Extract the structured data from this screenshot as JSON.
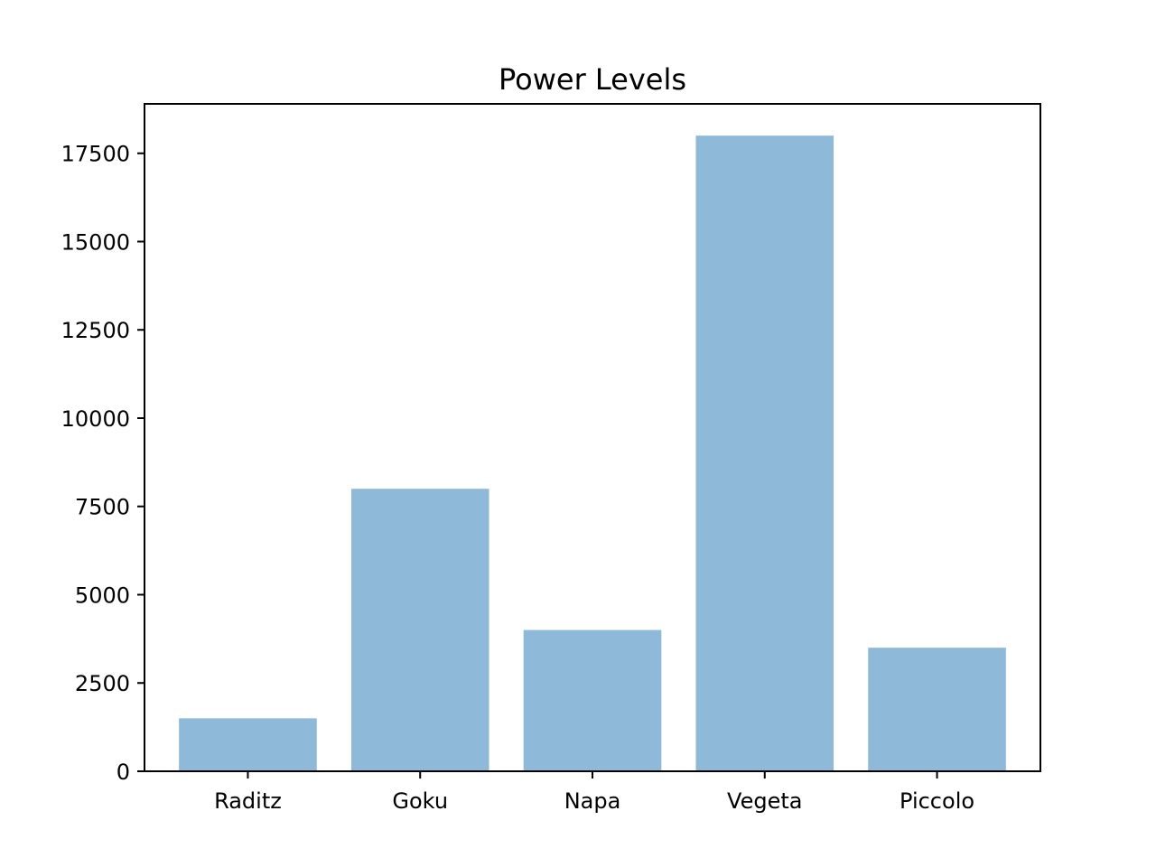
{
  "chart_data": {
    "type": "bar",
    "title": "Power Levels",
    "xlabel": "",
    "ylabel": "",
    "categories": [
      "Raditz",
      "Goku",
      "Napa",
      "Vegeta",
      "Piccolo"
    ],
    "values": [
      1500,
      8000,
      4000,
      18000,
      3500
    ],
    "ylim": [
      0,
      18900
    ],
    "yticks": [
      0,
      2500,
      5000,
      7500,
      10000,
      12500,
      15000,
      17500
    ],
    "grid": false,
    "bar_color": "#8fb9d8"
  }
}
